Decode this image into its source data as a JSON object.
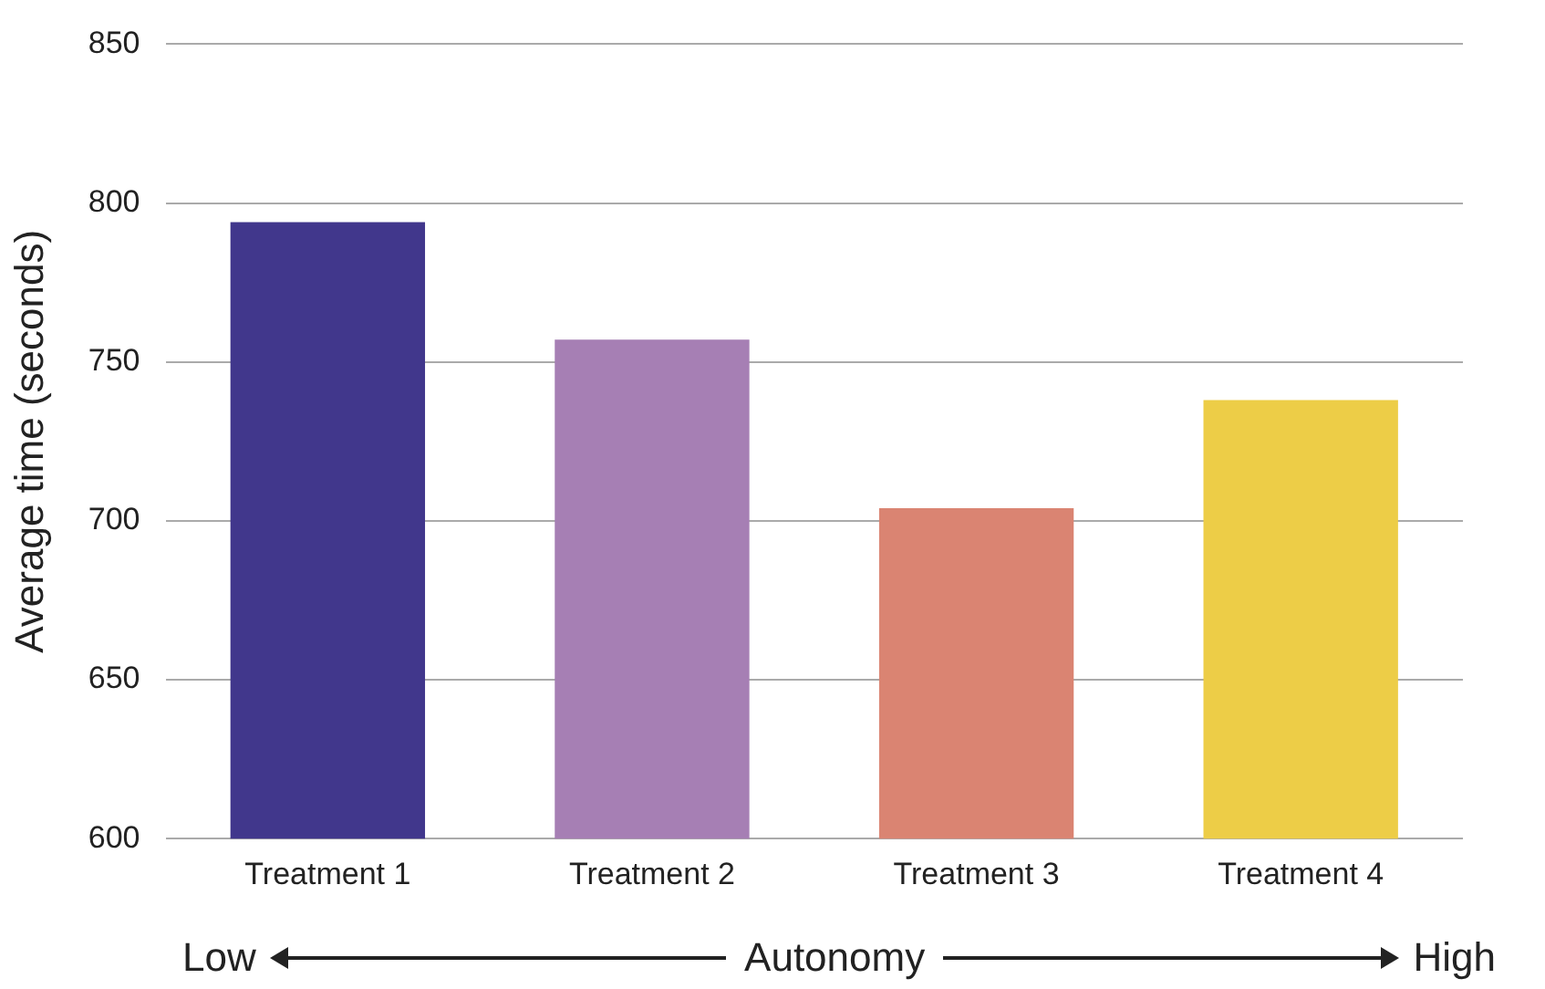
{
  "chart_data": {
    "type": "bar",
    "ylabel": "Average time (seconds)",
    "xlabel": "Autonomy",
    "annotations": [
      "Low",
      "High"
    ],
    "categories": [
      "Treatment 1",
      "Treatment 2",
      "Treatment 3",
      "Treatment 4"
    ],
    "values": [
      794,
      757,
      704,
      738
    ],
    "colors": [
      "#41378c",
      "#a67fb4",
      "#da8472",
      "#edcd47"
    ],
    "ylim": [
      600,
      850
    ],
    "yticks": [
      600,
      650,
      700,
      750,
      800,
      850
    ],
    "grid": "y",
    "legend": false
  }
}
